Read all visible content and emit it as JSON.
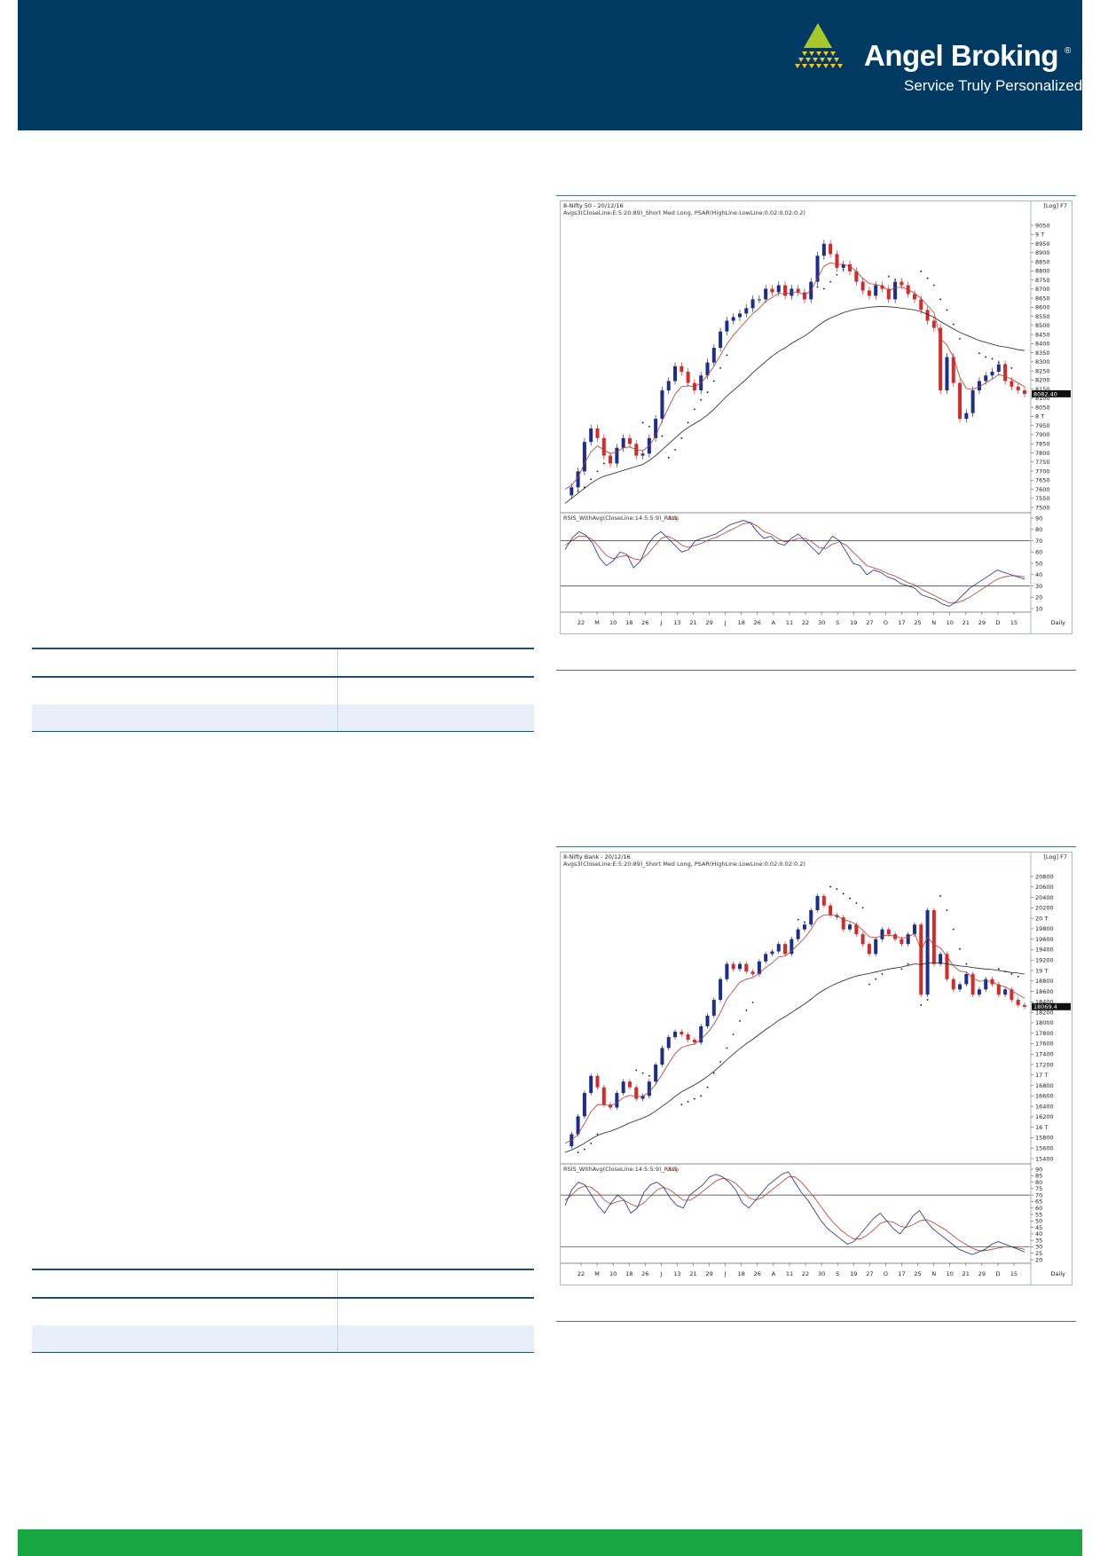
{
  "brand": {
    "name": "Angel Broking",
    "registered_mark": "®",
    "tagline": "Service Truly Personalized",
    "colors": {
      "header": "#003a63",
      "footer": "#18a843",
      "logo_green": "#a8c82a",
      "logo_yellow": "#f3c623"
    }
  },
  "chart_data": [
    {
      "type": "candlestick",
      "title": "8-Nifty 50 - 20/12/16",
      "subtitle": "Avgs3(CloseLine:E:5:20:89)_Short Med Long, PSAR(HighLine:LowLine:0.02:0.02:0.2)",
      "scale_label": "[Log] F7",
      "periodicity": "Daily",
      "last_price_label": "8082.40",
      "y_ticks": [
        "9050",
        "9 T",
        "8950",
        "8900",
        "8850",
        "8800",
        "8750",
        "8700",
        "8650",
        "8600",
        "8550",
        "8500",
        "8450",
        "8400",
        "8350",
        "8300",
        "8250",
        "8200",
        "8150",
        "8100",
        "8050",
        "8 T",
        "7950",
        "7900",
        "7850",
        "7800",
        "7750",
        "7700",
        "7650",
        "7600",
        "7550",
        "7500"
      ],
      "y_range": [
        7500,
        9050
      ],
      "x_ticks": [
        "22",
        "M",
        "10",
        "18",
        "26",
        "J",
        "13",
        "21",
        "29",
        "J",
        "18",
        "26",
        "A",
        "11",
        "22",
        "30",
        "S",
        "19",
        "27",
        "O",
        "17",
        "25",
        "N",
        "10",
        "21",
        "29",
        "D",
        "15"
      ],
      "close_path": [
        7560,
        7600,
        7680,
        7830,
        7900,
        7850,
        7760,
        7720,
        7800,
        7850,
        7820,
        7760,
        7770,
        7850,
        7950,
        8100,
        8150,
        8230,
        8200,
        8140,
        8100,
        8180,
        8250,
        8330,
        8420,
        8480,
        8500,
        8520,
        8550,
        8600,
        8600,
        8660,
        8640,
        8680,
        8620,
        8660,
        8640,
        8600,
        8700,
        8850,
        8920,
        8860,
        8780,
        8800,
        8760,
        8700,
        8650,
        8620,
        8680,
        8660,
        8600,
        8700,
        8680,
        8630,
        8600,
        8540,
        8480,
        8440,
        8100,
        8280,
        8140,
        7950,
        7980,
        8100,
        8150,
        8180,
        8200,
        8240,
        8150,
        8120,
        8100,
        8082
      ],
      "ema_short": [
        7590,
        7610,
        7650,
        7720,
        7780,
        7810,
        7790,
        7770,
        7780,
        7800,
        7805,
        7790,
        7785,
        7810,
        7860,
        7940,
        8010,
        8080,
        8120,
        8125,
        8120,
        8140,
        8180,
        8230,
        8290,
        8350,
        8400,
        8440,
        8480,
        8520,
        8550,
        8590,
        8610,
        8635,
        8630,
        8640,
        8640,
        8625,
        8650,
        8720,
        8790,
        8810,
        8800,
        8800,
        8790,
        8760,
        8720,
        8690,
        8685,
        8675,
        8650,
        8665,
        8670,
        8655,
        8635,
        8605,
        8565,
        8525,
        8380,
        8345,
        8280,
        8170,
        8110,
        8105,
        8120,
        8140,
        8160,
        8185,
        8175,
        8160,
        8140,
        8120
      ],
      "ema_long": [
        7520,
        7545,
        7570,
        7595,
        7620,
        7640,
        7655,
        7665,
        7675,
        7685,
        7695,
        7705,
        7715,
        7735,
        7760,
        7790,
        7820,
        7850,
        7880,
        7905,
        7925,
        7945,
        7970,
        8000,
        8035,
        8070,
        8100,
        8130,
        8160,
        8195,
        8225,
        8255,
        8285,
        8310,
        8330,
        8355,
        8375,
        8395,
        8420,
        8450,
        8475,
        8495,
        8510,
        8525,
        8535,
        8545,
        8550,
        8555,
        8558,
        8560,
        8558,
        8555,
        8550,
        8545,
        8540,
        8530,
        8515,
        8500,
        8475,
        8455,
        8435,
        8415,
        8400,
        8385,
        8370,
        8360,
        8350,
        8340,
        8335,
        8328,
        8320,
        8315
      ],
      "psar_upper": [
        [
          12,
          7930
        ],
        [
          13,
          7910
        ],
        [
          14,
          7880
        ],
        [
          15,
          7860
        ],
        [
          38,
          8680
        ],
        [
          39,
          8670
        ],
        [
          40,
          8660
        ],
        [
          50,
          8730
        ],
        [
          51,
          8710
        ],
        [
          52,
          8690
        ],
        [
          55,
          8760
        ],
        [
          56,
          8720
        ],
        [
          57,
          8680
        ],
        [
          58,
          8600
        ],
        [
          59,
          8540
        ],
        [
          60,
          8460
        ],
        [
          61,
          8380
        ],
        [
          64,
          8300
        ],
        [
          65,
          8280
        ],
        [
          66,
          8270
        ],
        [
          67,
          8250
        ],
        [
          68,
          8240
        ],
        [
          69,
          8220
        ]
      ],
      "psar_lower": [
        [
          2,
          7580
        ],
        [
          3,
          7600
        ],
        [
          4,
          7640
        ],
        [
          5,
          7680
        ],
        [
          6,
          7720
        ],
        [
          16,
          7750
        ],
        [
          17,
          7790
        ],
        [
          18,
          7850
        ],
        [
          19,
          7930
        ],
        [
          20,
          8000
        ],
        [
          21,
          8050
        ],
        [
          22,
          8090
        ],
        [
          23,
          8150
        ],
        [
          24,
          8220
        ],
        [
          25,
          8290
        ],
        [
          41,
          8700
        ],
        [
          42,
          8740
        ],
        [
          43,
          8770
        ],
        [
          44,
          8790
        ]
      ],
      "rsi_label": "RSIS_WithAvg(CloseLine:14:5:5:9)_RSIS",
      "rsi_avg_label": "Avg",
      "rsi_ticks": [
        "90",
        "80",
        "70",
        "60",
        "50",
        "40",
        "30",
        "20",
        "10"
      ],
      "rsi_levels": [
        70,
        30
      ],
      "rsi": [
        62,
        72,
        78,
        75,
        68,
        55,
        48,
        52,
        60,
        58,
        46,
        52,
        66,
        74,
        78,
        72,
        66,
        60,
        62,
        70,
        72,
        74,
        76,
        80,
        84,
        86,
        88,
        86,
        78,
        72,
        74,
        68,
        66,
        72,
        76,
        70,
        64,
        58,
        66,
        74,
        70,
        60,
        50,
        48,
        40,
        44,
        42,
        38,
        36,
        32,
        30,
        28,
        22,
        20,
        18,
        14,
        12,
        16,
        22,
        28,
        32,
        36,
        40,
        44,
        42,
        40,
        38,
        36
      ],
      "rsi_avg": [
        66,
        70,
        74,
        74,
        71,
        64,
        57,
        54,
        56,
        57,
        54,
        53,
        58,
        65,
        72,
        74,
        71,
        66,
        64,
        66,
        68,
        71,
        73,
        76,
        79,
        82,
        85,
        86,
        83,
        78,
        76,
        72,
        69,
        70,
        72,
        72,
        69,
        64,
        63,
        67,
        69,
        66,
        60,
        54,
        48,
        46,
        44,
        41,
        39,
        36,
        33,
        31,
        27,
        24,
        21,
        18,
        15,
        15,
        17,
        20,
        24,
        28,
        32,
        36,
        38,
        39,
        39,
        38
      ]
    },
    {
      "type": "candlestick",
      "title": "8-Nifty Bank - 20/12/16",
      "subtitle": "Avgs3(CloseLine:E:5:20:89)_Short Med Long, PSAR(HighLine:LowLine:0.02:0.02:0.2)",
      "scale_label": "[Log] F7",
      "periodicity": "Daily",
      "last_price_label": "18069.4",
      "y_ticks": [
        "20800",
        "20600",
        "20400",
        "20200",
        "20 T",
        "19800",
        "19600",
        "19400",
        "19200",
        "19 T",
        "18800",
        "18600",
        "18400",
        "18200",
        "18000",
        "17800",
        "17600",
        "17400",
        "17200",
        "17 T",
        "16800",
        "16600",
        "16400",
        "16200",
        "16 T",
        "15800",
        "15600",
        "15400"
      ],
      "y_range": [
        15400,
        20800
      ],
      "x_ticks": [
        "22",
        "M",
        "10",
        "18",
        "26",
        "J",
        "13",
        "21",
        "29",
        "J",
        "18",
        "26",
        "A",
        "11",
        "22",
        "30",
        "S",
        "19",
        "27",
        "O",
        "17",
        "25",
        "N",
        "10",
        "21",
        "29",
        "D",
        "15"
      ],
      "close_path": [
        15600,
        15800,
        16100,
        16500,
        16800,
        16600,
        16300,
        16250,
        16500,
        16700,
        16600,
        16400,
        16450,
        16700,
        17000,
        17300,
        17500,
        17600,
        17550,
        17450,
        17400,
        17700,
        17900,
        18200,
        18600,
        18900,
        18800,
        18900,
        18750,
        18700,
        18950,
        19100,
        19150,
        19300,
        19100,
        19400,
        19600,
        19700,
        20000,
        20300,
        20100,
        19900,
        19850,
        19600,
        19700,
        19500,
        19300,
        19100,
        19400,
        19600,
        19500,
        19400,
        19300,
        19500,
        19700,
        18300,
        20000,
        18900,
        19100,
        18600,
        18400,
        18500,
        18700,
        18300,
        18400,
        18600,
        18500,
        18300,
        18400,
        18200,
        18100,
        18069
      ],
      "ema_short": [
        15650,
        15700,
        15800,
        15980,
        16180,
        16300,
        16300,
        16280,
        16330,
        16420,
        16460,
        16440,
        16440,
        16520,
        16650,
        16830,
        17020,
        17200,
        17310,
        17350,
        17370,
        17460,
        17580,
        17740,
        17960,
        18220,
        18380,
        18540,
        18600,
        18630,
        18720,
        18830,
        18920,
        19040,
        19060,
        19160,
        19290,
        19420,
        19600,
        19820,
        19900,
        19900,
        19890,
        19800,
        19770,
        19700,
        19580,
        19450,
        19430,
        19470,
        19480,
        19460,
        19420,
        19440,
        19520,
        19180,
        19440,
        19280,
        19220,
        19050,
        18860,
        18760,
        18740,
        18620,
        18560,
        18570,
        18550,
        18480,
        18450,
        18380,
        18300,
        18230
      ],
      "ema_long": [
        15500,
        15540,
        15590,
        15650,
        15720,
        15780,
        15820,
        15850,
        15890,
        15940,
        15990,
        16030,
        16070,
        16120,
        16190,
        16270,
        16350,
        16440,
        16520,
        16580,
        16640,
        16710,
        16790,
        16880,
        16980,
        17090,
        17190,
        17290,
        17380,
        17460,
        17550,
        17640,
        17720,
        17810,
        17880,
        17960,
        18040,
        18120,
        18210,
        18310,
        18390,
        18460,
        18520,
        18570,
        18620,
        18660,
        18690,
        18710,
        18740,
        18770,
        18800,
        18820,
        18840,
        18870,
        18900,
        18890,
        18920,
        18920,
        18920,
        18900,
        18880,
        18860,
        18850,
        18830,
        18810,
        18800,
        18790,
        18770,
        18750,
        18730,
        18720,
        18700
      ],
      "psar_upper": [
        [
          11,
          16900
        ],
        [
          12,
          16850
        ],
        [
          13,
          16800
        ],
        [
          36,
          19800
        ],
        [
          37,
          19750
        ],
        [
          41,
          20500
        ],
        [
          42,
          20450
        ],
        [
          43,
          20350
        ],
        [
          44,
          20250
        ],
        [
          45,
          20150
        ],
        [
          46,
          20050
        ],
        [
          58,
          20300
        ],
        [
          59,
          20000
        ],
        [
          60,
          19600
        ],
        [
          61,
          19200
        ],
        [
          62,
          18900
        ],
        [
          67,
          18800
        ],
        [
          68,
          18750
        ],
        [
          69,
          18700
        ],
        [
          70,
          18650
        ]
      ],
      "psar_lower": [
        [
          2,
          15500
        ],
        [
          3,
          15550
        ],
        [
          4,
          15650
        ],
        [
          5,
          15800
        ],
        [
          18,
          16300
        ],
        [
          19,
          16350
        ],
        [
          20,
          16400
        ],
        [
          21,
          16450
        ],
        [
          22,
          16600
        ],
        [
          23,
          16850
        ],
        [
          24,
          17050
        ],
        [
          25,
          17300
        ],
        [
          26,
          17550
        ],
        [
          27,
          17800
        ],
        [
          28,
          18000
        ],
        [
          29,
          18150
        ],
        [
          47,
          18500
        ],
        [
          48,
          18600
        ],
        [
          49,
          18700
        ],
        [
          52,
          18800
        ],
        [
          53,
          18900
        ],
        [
          55,
          18100
        ],
        [
          56,
          18200
        ]
      ],
      "rsi_label": "RSIS_WithAvg(CloseLine:14:5:5:9)_RSIS",
      "rsi_avg_label": "Avg",
      "rsi_ticks": [
        "90",
        "85",
        "80",
        "75",
        "70",
        "65",
        "60",
        "55",
        "50",
        "45",
        "40",
        "35",
        "30",
        "25",
        "20"
      ],
      "rsi_levels": [
        70,
        30
      ],
      "rsi": [
        62,
        74,
        80,
        78,
        70,
        62,
        56,
        64,
        70,
        66,
        56,
        60,
        72,
        78,
        80,
        76,
        68,
        62,
        60,
        70,
        74,
        78,
        84,
        86,
        84,
        80,
        74,
        64,
        60,
        66,
        72,
        78,
        82,
        86,
        88,
        80,
        72,
        66,
        58,
        50,
        44,
        40,
        36,
        32,
        34,
        40,
        46,
        52,
        56,
        50,
        44,
        40,
        46,
        54,
        58,
        50,
        44,
        40,
        36,
        32,
        28,
        26,
        24,
        26,
        28,
        32,
        34,
        32,
        30,
        28,
        26
      ],
      "rsi_avg": [
        66,
        70,
        75,
        77,
        76,
        72,
        66,
        63,
        65,
        66,
        63,
        61,
        64,
        69,
        74,
        76,
        74,
        70,
        66,
        66,
        69,
        73,
        77,
        81,
        83,
        82,
        79,
        74,
        68,
        66,
        68,
        72,
        76,
        80,
        84,
        84,
        80,
        74,
        68,
        61,
        54,
        48,
        43,
        39,
        36,
        36,
        39,
        43,
        48,
        50,
        49,
        46,
        45,
        47,
        50,
        51,
        49,
        46,
        43,
        39,
        35,
        32,
        29,
        27,
        27,
        28,
        29,
        30,
        30,
        29,
        28
      ]
    }
  ]
}
